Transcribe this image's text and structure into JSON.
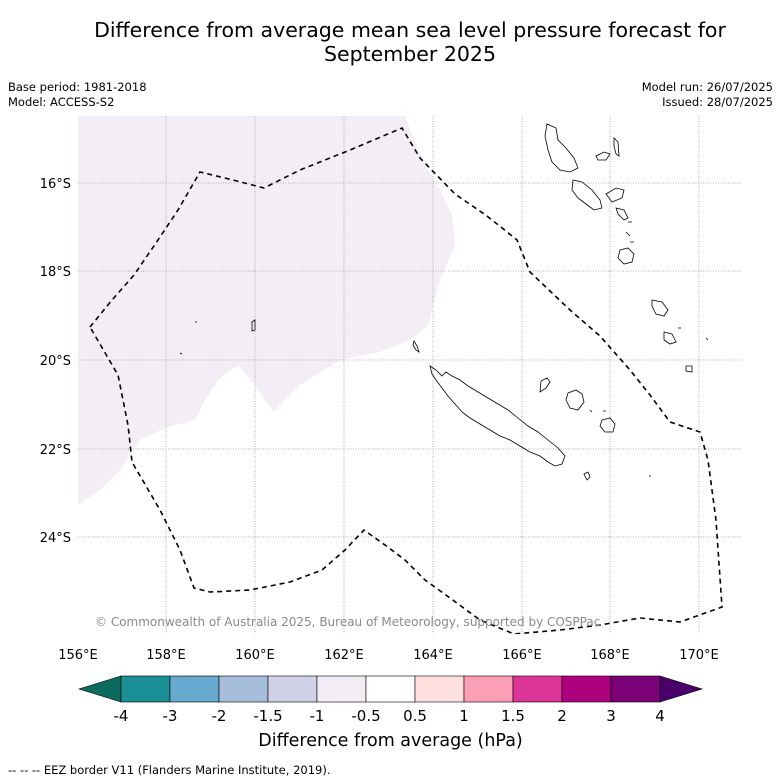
{
  "header": {
    "title_line1": "Difference from average mean sea level pressure forecast for",
    "title_line2": "September 2025",
    "base_period": "Base period: 1981-2018",
    "model": "Model: ACCESS-S2",
    "model_run": "Model run: 26/07/2025",
    "issued": "Issued: 28/07/2025"
  },
  "map": {
    "region": "New Caledonia",
    "lon_ticks": [
      "156°E",
      "158°E",
      "160°E",
      "162°E",
      "164°E",
      "166°E",
      "168°E",
      "170°E"
    ],
    "lat_ticks": [
      "16°S",
      "18°S",
      "20°S",
      "22°S",
      "24°S"
    ],
    "copyright": "© Commonwealth of Australia 2025, Bureau of Meteorology, supported by COSPPac",
    "shaded_category": "-1 to -0.5",
    "grid": true,
    "colors": {
      "ocean": "#ffffff",
      "anomaly_fill": "#f3eef6",
      "eez_border": "#000000",
      "coast": "#000000"
    }
  },
  "colorbar": {
    "title": "Difference from average (hPa)",
    "ticks": [
      "-4",
      "-3",
      "-2",
      "-1.5",
      "-1",
      "-0.5",
      "0.5",
      "1",
      "1.5",
      "2",
      "3",
      "4"
    ],
    "colors": [
      "#0b6b5e",
      "#1a9096",
      "#67a9cf",
      "#a6bddb",
      "#d0d1e6",
      "#f3eef6",
      "#ffffff",
      "#fde0dd",
      "#fa9fb5",
      "#dd3497",
      "#ae017e",
      "#7a0177",
      "#49006a"
    ]
  },
  "footnote": "--  --  -- EEZ border V11 (Flanders Marine Institute, 2019)."
}
